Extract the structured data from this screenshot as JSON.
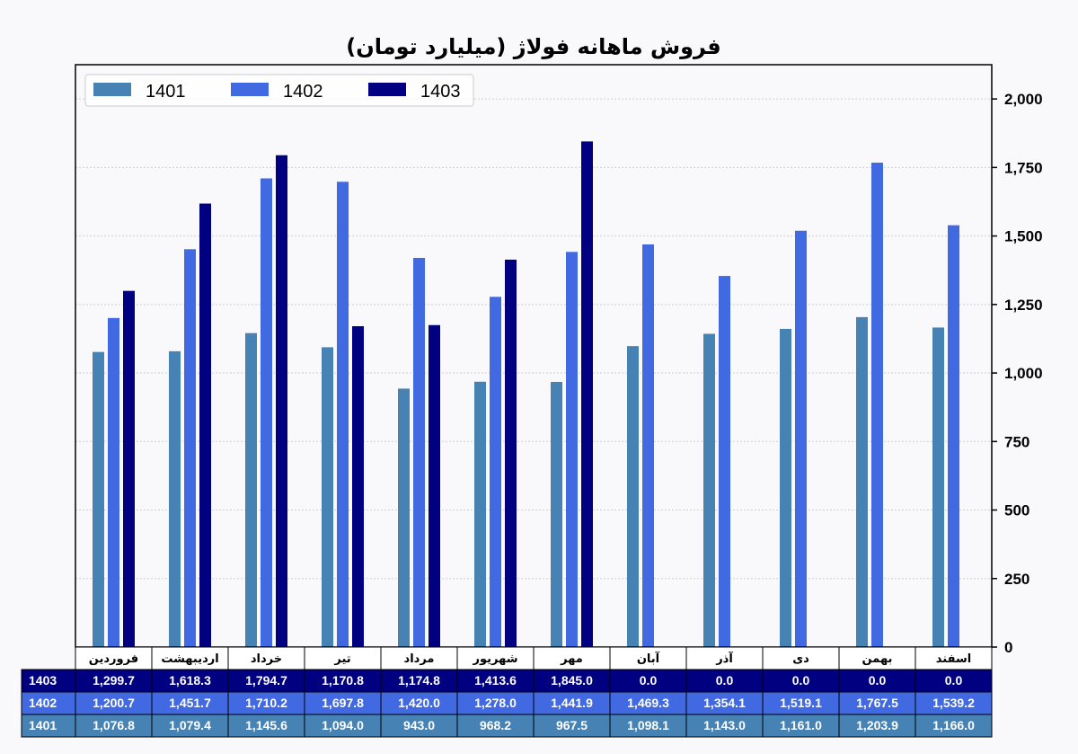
{
  "colors": {
    "background": "#f9f9fb",
    "series_1401": "#4682b4",
    "series_1402": "#4169e1",
    "series_1403": "#000080",
    "grid": "#cfcfcf"
  },
  "chart_data": {
    "type": "bar",
    "title": "فروش ماهانه فولاژ (میلیارد تومان)",
    "xlabel": "",
    "ylabel": "",
    "y_axis_side": "right",
    "ylim": [
      0,
      2125
    ],
    "yticks": [
      0,
      250,
      500,
      750,
      1000,
      1250,
      1500,
      1750,
      2000
    ],
    "ytick_labels": [
      "0",
      "250",
      "500",
      "750",
      "1,000",
      "1,250",
      "1,500",
      "1,750",
      "2,000"
    ],
    "grid": true,
    "legend_position": "top-left",
    "categories": [
      "فروردین",
      "اردیبهشت",
      "خرداد",
      "تیر",
      "مرداد",
      "شهریور",
      "مهر",
      "آبان",
      "آذر",
      "دی",
      "بهمن",
      "اسفند"
    ],
    "series": [
      {
        "name": "1401",
        "values": [
          1076.8,
          1079.4,
          1145.6,
          1094.0,
          943.0,
          968.2,
          967.5,
          1098.1,
          1143.0,
          1161.0,
          1203.9,
          1166.0
        ],
        "labels": [
          "1,076.8",
          "1,079.4",
          "1,145.6",
          "1,094.0",
          "943.0",
          "968.2",
          "967.5",
          "1,098.1",
          "1,143.0",
          "1,161.0",
          "1,203.9",
          "1,166.0"
        ]
      },
      {
        "name": "1402",
        "values": [
          1200.7,
          1451.7,
          1710.2,
          1697.8,
          1420.0,
          1278.0,
          1441.9,
          1469.3,
          1354.1,
          1519.1,
          1767.5,
          1539.2
        ],
        "labels": [
          "1,200.7",
          "1,451.7",
          "1,710.2",
          "1,697.8",
          "1,420.0",
          "1,278.0",
          "1,441.9",
          "1,469.3",
          "1,354.1",
          "1,519.1",
          "1,767.5",
          "1,539.2"
        ]
      },
      {
        "name": "1403",
        "values": [
          1299.7,
          1618.3,
          1794.7,
          1170.8,
          1174.8,
          1413.6,
          1845.0,
          0.0,
          0.0,
          0.0,
          0.0,
          0.0
        ],
        "labels": [
          "1,299.7",
          "1,618.3",
          "1,794.7",
          "1,170.8",
          "1,174.8",
          "1,413.6",
          "1,845.0",
          "0.0",
          "0.0",
          "0.0",
          "0.0",
          "0.0"
        ]
      }
    ],
    "table": {
      "row_order": [
        "1403",
        "1402",
        "1401"
      ]
    }
  }
}
